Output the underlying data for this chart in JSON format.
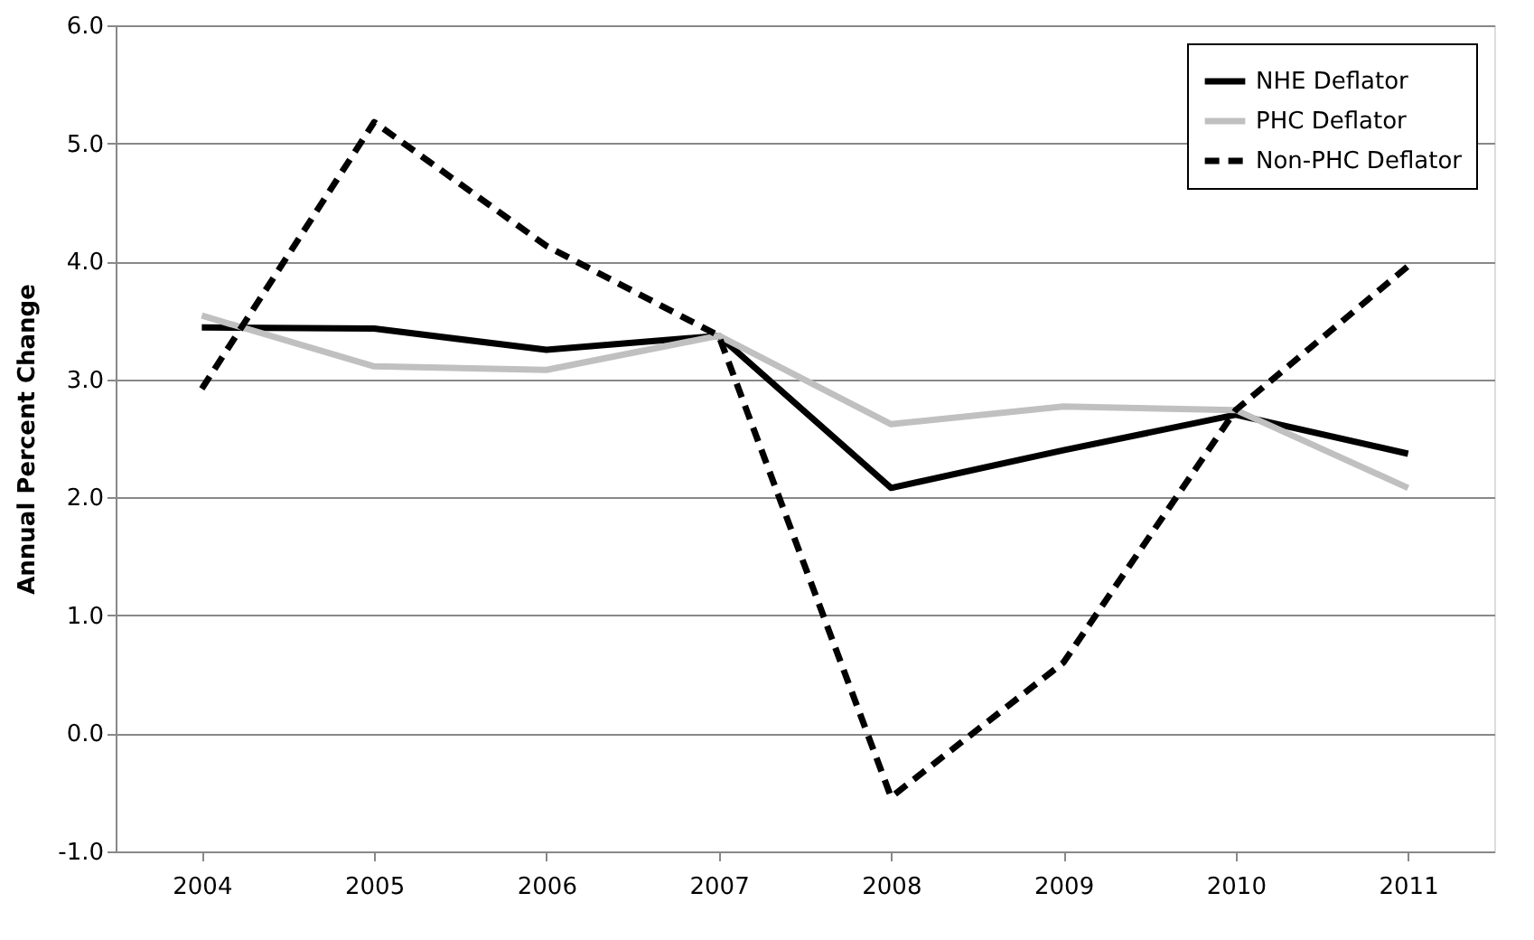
{
  "chart_data": {
    "type": "line",
    "ylabel": "Annual Percent Change",
    "categories": [
      "2004",
      "2005",
      "2006",
      "2007",
      "2008",
      "2009",
      "2010",
      "2011"
    ],
    "series": [
      {
        "name": "NHE Deflator",
        "color": "#000000",
        "line_style": "solid",
        "values": [
          3.44,
          3.43,
          3.25,
          3.37,
          2.08,
          2.4,
          2.7,
          2.37
        ]
      },
      {
        "name": "PHC Deflator",
        "color": "#c0c0c0",
        "line_style": "solid",
        "values": [
          3.54,
          3.11,
          3.08,
          3.37,
          2.62,
          2.77,
          2.74,
          2.08
        ]
      },
      {
        "name": "Non-PHC Deflator",
        "color": "#000000",
        "line_style": "dashed",
        "values": [
          2.92,
          5.18,
          4.13,
          3.37,
          -0.54,
          0.6,
          2.74,
          3.96
        ]
      }
    ],
    "ylim": [
      -1,
      6
    ],
    "yticks": [
      {
        "value": -1,
        "label": "-1.0"
      },
      {
        "value": 0,
        "label": "0.0"
      },
      {
        "value": 1,
        "label": "1.0"
      },
      {
        "value": 2,
        "label": "2.0"
      },
      {
        "value": 3,
        "label": "3.0"
      },
      {
        "value": 4,
        "label": "4.0"
      },
      {
        "value": 5,
        "label": "5.0"
      },
      {
        "value": 6,
        "label": "6.0"
      }
    ],
    "grid": "y",
    "legend": "top right",
    "marker": "none"
  }
}
